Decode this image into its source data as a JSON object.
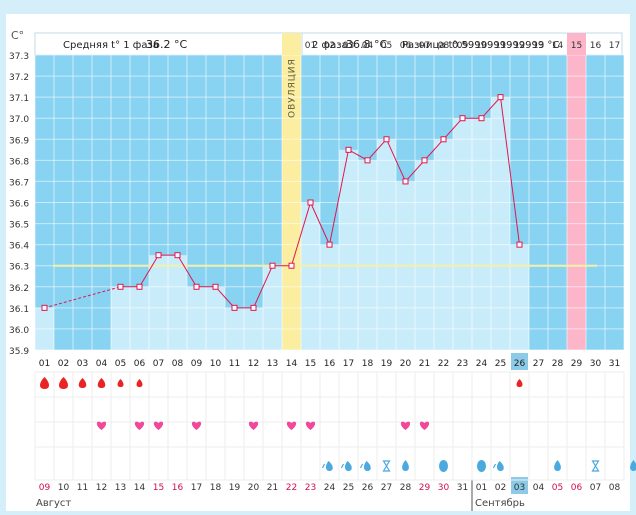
{
  "header": {
    "y_unit": "C°",
    "phase1_label": "Средняя t° 1 фаза",
    "phase1_value": "36.2 °C",
    "phase2_label": "2 фаза",
    "phase2_value": "36.8 °C",
    "diff_label": "Разница t°",
    "diff_value": "0.5999999999999 °C"
  },
  "ovulation_label": "ОВУЛЯЦИЯ",
  "phase2_day_labels": [
    "01",
    "02",
    "03",
    "04",
    "05",
    "06",
    "07",
    "08",
    "09",
    "10",
    "11",
    "12",
    "13",
    "14",
    "15",
    "16",
    "17"
  ],
  "chart_data": {
    "type": "line",
    "ylim": [
      35.9,
      37.3
    ],
    "ytick_labels": [
      "35.9",
      "36.0",
      "36.1",
      "36.2",
      "36.3",
      "36.4",
      "36.5",
      "36.6",
      "36.7",
      "36.8",
      "36.9",
      "37.0",
      "37.1",
      "37.2",
      "37.3"
    ],
    "x": [
      "01",
      "02",
      "03",
      "04",
      "05",
      "06",
      "07",
      "08",
      "09",
      "10",
      "11",
      "12",
      "13",
      "14",
      "15",
      "16",
      "17",
      "18",
      "19",
      "20",
      "21",
      "22",
      "23",
      "24",
      "25",
      "26",
      "27",
      "28",
      "29",
      "30",
      "31"
    ],
    "values": [
      36.1,
      null,
      null,
      null,
      36.2,
      36.2,
      36.35,
      36.35,
      36.2,
      36.2,
      36.1,
      36.1,
      36.3,
      36.3,
      36.6,
      36.4,
      36.85,
      36.8,
      36.9,
      36.7,
      36.8,
      36.9,
      37.0,
      37.0,
      37.1,
      36.4,
      null,
      null,
      null,
      null,
      null
    ],
    "coverline": 36.3,
    "ovulation_day": 14,
    "current_day": 26,
    "highlight_day": 29,
    "dates": [
      "09",
      "10",
      "11",
      "12",
      "13",
      "14",
      "15",
      "16",
      "17",
      "18",
      "19",
      "20",
      "21",
      "22",
      "23",
      "24",
      "25",
      "26",
      "27",
      "28",
      "29",
      "30",
      "31",
      "01",
      "02",
      "03",
      "04",
      "05",
      "06",
      "07",
      "08"
    ],
    "weekend_days": [
      1,
      7,
      8,
      14,
      15,
      21,
      22,
      28,
      29
    ],
    "today_date_day": 26,
    "month_labels": [
      "Август",
      "Сентябрь"
    ],
    "month_break_day": 24
  },
  "markers": {
    "bleeding": [
      1,
      2,
      3,
      4,
      5,
      6,
      26
    ],
    "bleeding_sizes": [
      3,
      3,
      2,
      2,
      1,
      1,
      1
    ],
    "hearts": [
      4,
      6,
      7,
      9,
      12,
      14,
      15,
      20,
      21
    ],
    "cervical": [
      {
        "day": 16,
        "kind": "drop-tail"
      },
      {
        "day": 17,
        "kind": "drop-tail"
      },
      {
        "day": 18,
        "kind": "drop-tail"
      },
      {
        "day": 19,
        "kind": "hourglass"
      },
      {
        "day": 20,
        "kind": "drop"
      },
      {
        "day": 22,
        "kind": "egg"
      },
      {
        "day": 24,
        "kind": "egg"
      },
      {
        "day": 25,
        "kind": "drop-tail"
      },
      {
        "day": 28,
        "kind": "drop"
      },
      {
        "day": 30,
        "kind": "hourglass"
      },
      {
        "day": 32,
        "kind": "drop"
      },
      {
        "day": 34,
        "kind": "drop"
      }
    ]
  },
  "colors": {
    "sky": "#89d3f2",
    "bar": "#c9ecfb",
    "line": "#e0164e",
    "ovulation": "#fbeea0",
    "highlight": "#fdb6c9",
    "blood": "#ea2424",
    "heart": "#f0489a",
    "water": "#4aa9df",
    "weekend_text": "#cf0f4e",
    "coverline": "#f3f0a8"
  }
}
